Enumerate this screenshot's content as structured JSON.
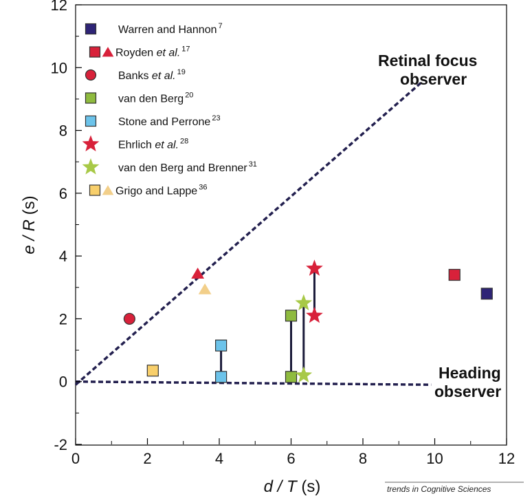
{
  "chart_data": {
    "type": "scatter",
    "xlabel": {
      "var": "d / T",
      "unit": " (s)"
    },
    "ylabel": {
      "var": "e / R",
      "unit": " (s)"
    },
    "xlim": [
      0,
      12
    ],
    "ylim": [
      -2,
      12
    ],
    "x_ticks": [
      "0",
      "2",
      "4",
      "6",
      "8",
      "10",
      "12"
    ],
    "y_ticks": [
      "-2",
      "0",
      "2",
      "4",
      "6",
      "8",
      "10",
      "12"
    ],
    "colors": {
      "warren": "#2e2476",
      "royden": "#d8213a",
      "banks": "#d8213a",
      "vandenberg": "#8fbb3f",
      "stone": "#6cc3ea",
      "ehrlich": "#d8213a",
      "vdb_brenner": "#a8c947",
      "grigo_sq": "#f8cf6b",
      "grigo_tri": "#f2cf8a"
    },
    "legend": [
      {
        "marker": "square",
        "color": "#2e2476",
        "name": "Warren and Hannon",
        "ref": "7"
      },
      {
        "marker": "square+triangle",
        "color": "#d8213a",
        "name": "Royden ",
        "italic": "et al.",
        "ref": "17"
      },
      {
        "marker": "circle",
        "color": "#d8213a",
        "name": "Banks ",
        "italic": "et al.",
        "ref": "19"
      },
      {
        "marker": "square",
        "color": "#8fbb3f",
        "name": "van den Berg",
        "ref": "20"
      },
      {
        "marker": "square",
        "color": "#6cc3ea",
        "name": "Stone and Perrone",
        "ref": "23"
      },
      {
        "marker": "star",
        "color": "#d8213a",
        "name": "Ehrlich ",
        "italic": "et al.",
        "ref": "28"
      },
      {
        "marker": "star",
        "color": "#a8c947",
        "name": "van den Berg and Brenner",
        "ref": "31"
      },
      {
        "marker": "square+triangle",
        "color": "#f8cf6b",
        "name": "Grigo and Lappe",
        "ref": "36"
      }
    ],
    "series": [
      {
        "study": "Warren and Hannon",
        "marker": "square",
        "points": [
          [
            11.45,
            2.8
          ]
        ]
      },
      {
        "study": "Royden et al.",
        "marker": "square",
        "points": [
          [
            10.55,
            3.4
          ]
        ]
      },
      {
        "study": "Royden et al.",
        "marker": "triangle",
        "points": [
          [
            3.4,
            3.45
          ]
        ]
      },
      {
        "study": "Banks et al.",
        "marker": "circle",
        "points": [
          [
            1.5,
            2.0
          ]
        ]
      },
      {
        "study": "van den Berg",
        "marker": "square",
        "points": [
          [
            6.0,
            2.1
          ],
          [
            6.0,
            0.15
          ]
        ],
        "connected": true
      },
      {
        "study": "Stone and Perrone",
        "marker": "square",
        "points": [
          [
            4.05,
            1.15
          ],
          [
            4.05,
            0.15
          ]
        ],
        "connected": true
      },
      {
        "study": "Ehrlich et al.",
        "marker": "star",
        "points": [
          [
            6.65,
            3.6
          ],
          [
            6.65,
            2.1
          ]
        ],
        "connected": true
      },
      {
        "study": "van den Berg and Brenner",
        "marker": "star",
        "points": [
          [
            6.35,
            2.5
          ],
          [
            6.35,
            0.2
          ]
        ],
        "connected": true
      },
      {
        "study": "Grigo and Lappe",
        "marker": "square",
        "points": [
          [
            2.15,
            0.35
          ]
        ]
      },
      {
        "study": "Grigo and Lappe",
        "marker": "triangle",
        "points": [
          [
            3.6,
            2.95
          ]
        ]
      }
    ],
    "reference_lines": [
      {
        "name": "Retinal focus observer",
        "from": [
          0,
          -0.1
        ],
        "to": [
          9.65,
          9.55
        ],
        "style": "dashed"
      },
      {
        "name": "Heading observer",
        "from": [
          0,
          0
        ],
        "to": [
          9.9,
          -0.1
        ],
        "style": "dashed"
      }
    ],
    "annotations": {
      "retinal_line1": "Retinal focus",
      "retinal_line2": "observer",
      "heading_line1": "Heading",
      "heading_line2": "observer"
    },
    "credit": "trends in Cognitive Sciences",
    "grid": false,
    "legend_position": "top-left"
  }
}
